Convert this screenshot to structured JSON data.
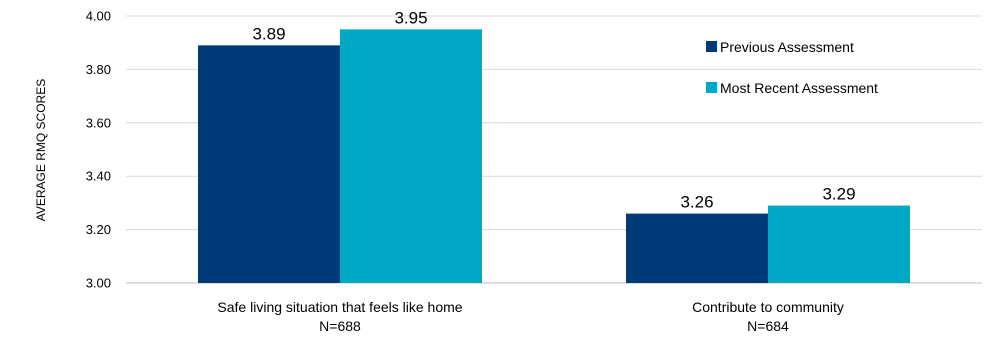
{
  "chart_data": {
    "type": "bar",
    "title": "",
    "xlabel": "",
    "ylabel": "AVERAGE RMQ SCORES",
    "ylim": [
      3.0,
      4.0
    ],
    "yticks": [
      "3.00",
      "3.20",
      "3.40",
      "3.60",
      "3.80",
      "4.00"
    ],
    "grid": true,
    "legend_position": "top-right",
    "categories": [
      {
        "line1": "Safe living situation that feels like home",
        "line2": "N=688"
      },
      {
        "line1": "Contribute to community",
        "line2": "N=684"
      }
    ],
    "series": [
      {
        "name": "Previous Assessment",
        "color": "#003a78",
        "values": [
          3.89,
          3.26
        ],
        "labels": [
          "3.89",
          "3.26"
        ]
      },
      {
        "name": "Most Recent Assessment",
        "color": "#00a8c6",
        "values": [
          3.95,
          3.29
        ],
        "labels": [
          "3.95",
          "3.29"
        ]
      }
    ]
  }
}
